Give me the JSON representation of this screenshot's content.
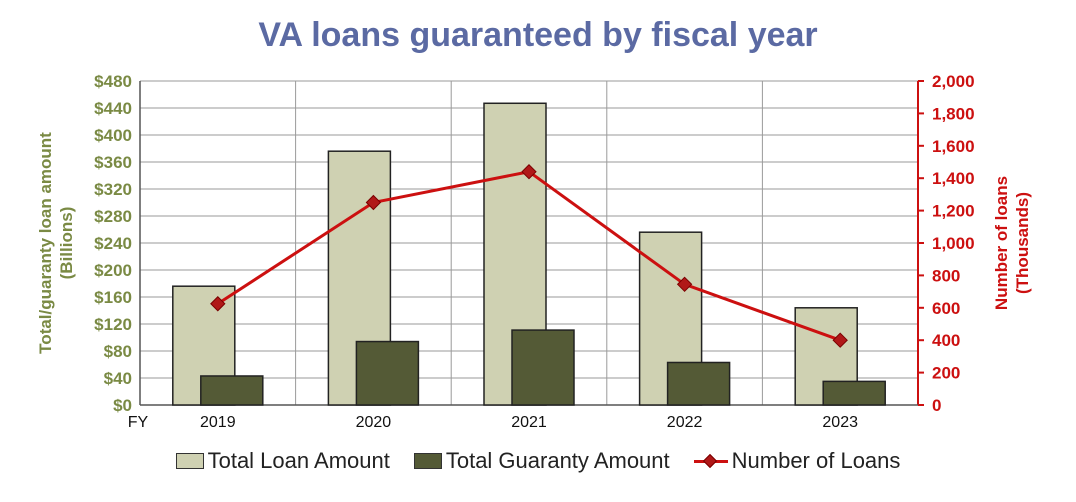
{
  "chart_data": {
    "type": "bar",
    "title": "VA loans guaranteed by fiscal year",
    "x_prefix": "FY",
    "categories": [
      "2019",
      "2020",
      "2021",
      "2022",
      "2023"
    ],
    "series": [
      {
        "name": "Total Loan Amount",
        "type": "bar",
        "axis": "left",
        "values": [
          176,
          376,
          447,
          256,
          144
        ],
        "color": "#cfd1b2"
      },
      {
        "name": "Total Guaranty Amount",
        "type": "bar",
        "axis": "left",
        "values": [
          43,
          94,
          111,
          63,
          35
        ],
        "color": "#545a36"
      },
      {
        "name": "Number of Loans",
        "type": "line",
        "axis": "right",
        "values": [
          625,
          1250,
          1440,
          745,
          400
        ],
        "color": "#cc1010"
      }
    ],
    "y_left": {
      "label_line1": "Total/guaranty loan amount",
      "label_line2": "(Billions)",
      "ylim": [
        0,
        480
      ],
      "ticks": [
        "$0",
        "$40",
        "$80",
        "$120",
        "$160",
        "$200",
        "$240",
        "$280",
        "$320",
        "$360",
        "$400",
        "$440",
        "$480"
      ],
      "color": "#7a8a44"
    },
    "y_right": {
      "label_line1": "Number of loans",
      "label_line2": "(Thousands)",
      "ylim": [
        0,
        2000
      ],
      "ticks": [
        "0",
        "200",
        "400",
        "600",
        "800",
        "1,000",
        "1,200",
        "1,400",
        "1,600",
        "1,800",
        "2,000"
      ],
      "color": "#cc1010"
    },
    "grid": true,
    "legend_position": "bottom"
  }
}
